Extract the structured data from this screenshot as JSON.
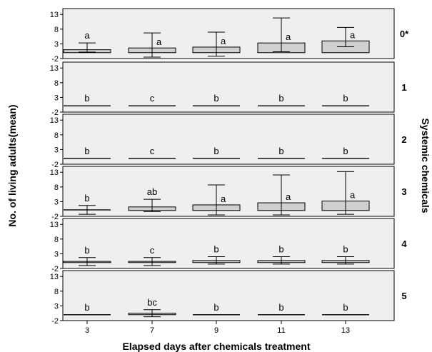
{
  "chart_data": {
    "type": "bar",
    "ylabel": "No. of living adults(mean)",
    "xlabel": "Elapsed days after chemicals treatment",
    "facet_title": "Systemic chemicals",
    "categories": [
      "3",
      "7",
      "9",
      "11",
      "13"
    ],
    "yticks": [
      "13",
      "8",
      "3",
      "-2"
    ],
    "ylim": [
      -2,
      15
    ],
    "error_bars": true,
    "grid": false,
    "panels": [
      {
        "name": "0*",
        "values": [
          1.0,
          1.6,
          1.9,
          3.3,
          4.0
        ],
        "err_low": [
          0.2,
          -1.5,
          -1.2,
          0.3,
          2.0
        ],
        "err_high": [
          3.3,
          6.7,
          7.0,
          11.8,
          8.6
        ],
        "letters": [
          "a",
          "a",
          "a",
          "a",
          "a"
        ]
      },
      {
        "name": "1",
        "values": [
          0.15,
          0.15,
          0.15,
          0.15,
          0.15
        ],
        "err_low": [
          0.15,
          0.15,
          0.15,
          0.15,
          0.15
        ],
        "err_high": [
          0.15,
          0.15,
          0.15,
          0.15,
          0.15
        ],
        "letters": [
          "b",
          "c",
          "b",
          "b",
          "b"
        ]
      },
      {
        "name": "2",
        "values": [
          0.0,
          0.0,
          0.0,
          0.0,
          0.0
        ],
        "err_low": [
          0.0,
          0.0,
          0.0,
          0.0,
          0.0
        ],
        "err_high": [
          0.0,
          0.0,
          0.0,
          0.0,
          0.0
        ],
        "letters": [
          "b",
          "c",
          "b",
          "b",
          "b"
        ]
      },
      {
        "name": "3",
        "values": [
          0.2,
          1.2,
          1.9,
          2.6,
          3.2
        ],
        "err_low": [
          -1.3,
          -0.4,
          -1.5,
          -1.5,
          -1.3
        ],
        "err_high": [
          1.7,
          3.8,
          8.7,
          12.1,
          13.2
        ],
        "letters": [
          "b",
          "ab",
          "a",
          "a",
          "a"
        ]
      },
      {
        "name": "4",
        "values": [
          0.4,
          0.4,
          0.7,
          0.7,
          0.7
        ],
        "err_low": [
          -1.0,
          -1.0,
          -0.5,
          -0.5,
          -0.5
        ],
        "err_high": [
          1.7,
          1.7,
          2.0,
          2.0,
          2.0
        ],
        "letters": [
          "b",
          "c",
          "b",
          "b",
          "b"
        ]
      },
      {
        "name": "5",
        "values": [
          0.0,
          0.5,
          0.0,
          0.0,
          0.0
        ],
        "err_low": [
          0.0,
          -0.7,
          0.0,
          0.0,
          0.0
        ],
        "err_high": [
          0.0,
          1.7,
          0.0,
          0.0,
          0.0
        ],
        "letters": [
          "b",
          "bc",
          "b",
          "b",
          "b"
        ]
      }
    ]
  },
  "colors": {
    "panel_bg": "#efefef",
    "bar_fill": "#d0d0d0",
    "stroke": "#000000"
  }
}
